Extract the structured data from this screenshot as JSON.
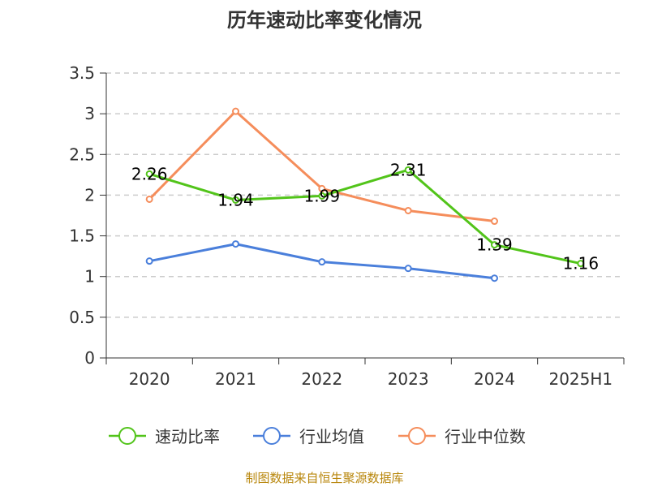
{
  "chart_data": {
    "type": "line",
    "title": "历年速动比率变化情况",
    "categories": [
      "2020",
      "2021",
      "2022",
      "2023",
      "2024",
      "2025H1"
    ],
    "ylim": [
      0,
      3.5
    ],
    "yticks": [
      "0",
      "0.5",
      "1",
      "1.5",
      "2",
      "2.5",
      "3",
      "3.5"
    ],
    "grid": true,
    "legend_position": "bottom",
    "series": [
      {
        "name": "速动比率",
        "color": "#52c41a",
        "values": [
          2.26,
          1.94,
          1.99,
          2.31,
          1.39,
          1.16
        ],
        "labels": [
          "2.26",
          "1.94",
          "1.99",
          "2.31",
          "1.39",
          "1.16"
        ]
      },
      {
        "name": "行业均值",
        "color": "#4a7fdb",
        "values": [
          1.19,
          1.4,
          1.18,
          1.1,
          0.98,
          null
        ]
      },
      {
        "name": "行业中位数",
        "color": "#f58d5b",
        "values": [
          1.95,
          3.03,
          2.08,
          1.81,
          1.68,
          null
        ]
      }
    ],
    "source": "制图数据来自恒生聚源数据库"
  }
}
